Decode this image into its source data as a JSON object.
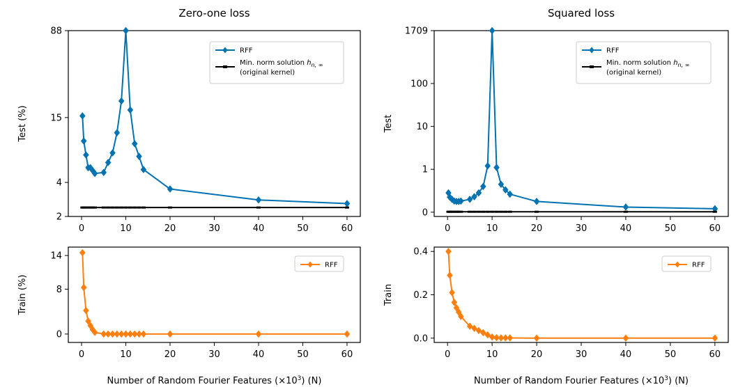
{
  "chart_data": [
    {
      "id": "zero-one-test",
      "type": "line",
      "title": "Zero-one loss",
      "ylabel": "Test (%)",
      "xlabel": "",
      "y_scale": "log",
      "ylim": [
        2,
        88
      ],
      "xlim": [
        -3,
        63
      ],
      "x_ticks": [
        0,
        10,
        20,
        30,
        40,
        50,
        60
      ],
      "x_tick_labels": [
        "0",
        "10",
        "20",
        "30",
        "40",
        "50",
        "60"
      ],
      "y_ticks": [
        2,
        4,
        15,
        88
      ],
      "y_tick_labels": [
        "2",
        "4",
        "15",
        "88"
      ],
      "legend": [
        {
          "label": "RFF"
        },
        {
          "label_main": "Min. norm solution ",
          "label_math": "h",
          "label_sub": "n, ∞"
        },
        {
          "label": "(original kernel)"
        }
      ],
      "series": [
        {
          "name": "RFF",
          "color": "#0072B2",
          "marker": "diamond",
          "x": [
            0.2,
            0.5,
            1,
            1.5,
            2,
            2.5,
            3,
            5,
            6,
            7,
            8,
            9,
            10,
            11,
            12,
            13,
            14,
            20,
            40,
            60
          ],
          "y": [
            15.5,
            9.3,
            7.0,
            5.4,
            5.4,
            5.1,
            4.8,
            4.9,
            6.0,
            7.3,
            11.0,
            21.0,
            88,
            17.5,
            8.8,
            6.8,
            5.2,
            3.5,
            2.8,
            2.6
          ]
        },
        {
          "name": "Min. norm solution (original kernel)",
          "color": "#000000",
          "marker": "minus",
          "x": [
            0.2,
            0.5,
            1,
            1.5,
            2,
            2.5,
            3,
            5,
            6,
            7,
            8,
            9,
            10,
            11,
            12,
            13,
            14,
            20,
            40,
            60
          ],
          "y": [
            2.4,
            2.4,
            2.4,
            2.4,
            2.4,
            2.4,
            2.4,
            2.4,
            2.4,
            2.4,
            2.4,
            2.4,
            2.4,
            2.4,
            2.4,
            2.4,
            2.4,
            2.4,
            2.4,
            2.4
          ]
        }
      ]
    },
    {
      "id": "squared-test",
      "type": "line",
      "title": "Squared loss",
      "ylabel": "Test",
      "xlabel": "",
      "y_scale": "symlog",
      "ylim": [
        -0.1,
        1709
      ],
      "xlim": [
        -3,
        63
      ],
      "x_ticks": [
        0,
        10,
        20,
        30,
        40,
        50,
        60
      ],
      "x_tick_labels": [
        "0",
        "10",
        "20",
        "30",
        "40",
        "50",
        "60"
      ],
      "y_ticks": [
        0,
        1,
        10,
        100,
        1709
      ],
      "y_tick_labels": [
        "0",
        "1",
        "10",
        "100",
        "1709"
      ],
      "legend": [
        {
          "label": "RFF"
        },
        {
          "label_main": "Min. norm solution ",
          "label_math": "h",
          "label_sub": "n, ∞"
        },
        {
          "label": "(original kernel)"
        }
      ],
      "series": [
        {
          "name": "RFF",
          "color": "#0072B2",
          "marker": "diamond",
          "x": [
            0.2,
            0.5,
            1,
            1.5,
            2,
            2.5,
            3,
            5,
            6,
            7,
            8,
            9,
            10,
            11,
            12,
            13,
            14,
            20,
            40,
            60
          ],
          "y": [
            0.45,
            0.35,
            0.3,
            0.26,
            0.25,
            0.25,
            0.26,
            0.3,
            0.36,
            0.45,
            0.6,
            1.2,
            1709,
            1.1,
            0.65,
            0.52,
            0.42,
            0.25,
            0.12,
            0.08
          ]
        },
        {
          "name": "Min. norm solution (original kernel)",
          "color": "#000000",
          "marker": "minus",
          "x": [
            0.2,
            0.5,
            1,
            1.5,
            2,
            2.5,
            3,
            5,
            6,
            7,
            8,
            9,
            10,
            11,
            12,
            13,
            14,
            20,
            40,
            60
          ],
          "y": [
            0.01,
            0.01,
            0.01,
            0.01,
            0.01,
            0.01,
            0.01,
            0.01,
            0.01,
            0.01,
            0.01,
            0.01,
            0.01,
            0.01,
            0.01,
            0.01,
            0.01,
            0.01,
            0.01,
            0.01
          ]
        }
      ]
    },
    {
      "id": "zero-one-train",
      "type": "line",
      "title": "",
      "ylabel": "Train (%)",
      "xlabel": "Number of Random Fourier Features (×10³) (N)",
      "xlabel_main": "Number of Random Fourier Features (×10",
      "xlabel_sup": "3",
      "xlabel_tail": ") (N)",
      "y_scale": "linear",
      "ylim": [
        -1.5,
        15.5
      ],
      "xlim": [
        -3,
        63
      ],
      "x_ticks": [
        0,
        10,
        20,
        30,
        40,
        50,
        60
      ],
      "x_tick_labels": [
        "0",
        "10",
        "20",
        "30",
        "40",
        "50",
        "60"
      ],
      "y_ticks": [
        0,
        8,
        14
      ],
      "y_tick_labels": [
        "0",
        "8",
        "14"
      ],
      "legend": [
        {
          "label": "RFF"
        }
      ],
      "series": [
        {
          "name": "RFF",
          "color": "#FF7F0E",
          "marker": "diamond",
          "x": [
            0.2,
            0.5,
            1,
            1.5,
            2,
            2.5,
            3,
            5,
            6,
            7,
            8,
            9,
            10,
            11,
            12,
            13,
            14,
            20,
            40,
            60
          ],
          "y": [
            14.5,
            8.3,
            4.2,
            2.3,
            1.5,
            0.8,
            0.3,
            0,
            0,
            0,
            0,
            0,
            0,
            0,
            0,
            0,
            0,
            0,
            0,
            0
          ]
        }
      ]
    },
    {
      "id": "squared-train",
      "type": "line",
      "title": "",
      "ylabel": "Train",
      "xlabel": "Number of Random Fourier Features (×10³) (N)",
      "xlabel_main": "Number of Random Fourier Features (×10",
      "xlabel_sup": "3",
      "xlabel_tail": ") (N)",
      "y_scale": "linear",
      "ylim": [
        -0.02,
        0.42
      ],
      "xlim": [
        -3,
        63
      ],
      "x_ticks": [
        0,
        10,
        20,
        30,
        40,
        50,
        60
      ],
      "x_tick_labels": [
        "0",
        "10",
        "20",
        "30",
        "40",
        "50",
        "60"
      ],
      "y_ticks": [
        0,
        0.2,
        0.4
      ],
      "y_tick_labels": [
        "0.0",
        "0.2",
        "0.4"
      ],
      "legend": [
        {
          "label": "RFF"
        }
      ],
      "series": [
        {
          "name": "RFF",
          "color": "#FF7F0E",
          "marker": "diamond",
          "x": [
            0.2,
            0.5,
            1,
            1.5,
            2,
            2.5,
            3,
            5,
            6,
            7,
            8,
            9,
            10,
            11,
            12,
            13,
            14,
            20,
            40,
            60
          ],
          "y": [
            0.4,
            0.29,
            0.21,
            0.165,
            0.14,
            0.12,
            0.1,
            0.055,
            0.045,
            0.035,
            0.025,
            0.015,
            0.005,
            0.002,
            0.001,
            0.001,
            0.001,
            0,
            0,
            0
          ]
        }
      ]
    }
  ]
}
